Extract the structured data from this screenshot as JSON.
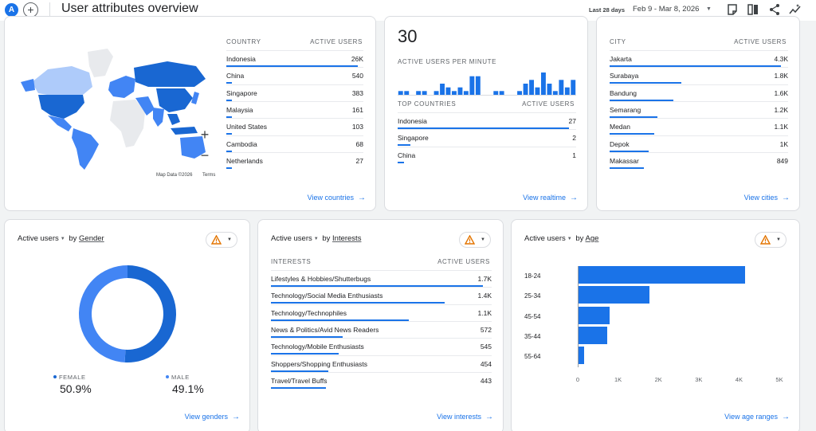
{
  "header": {
    "avatar_letter": "A",
    "plus": "+",
    "title": "User attributes overview",
    "date_chip": "Last 28 days",
    "date_range": "Feb 9 - Mar 8, 2026",
    "caret": "▼",
    "icons": [
      "annotation-icon",
      "compare-icon",
      "share-icon",
      "insights-icon"
    ]
  },
  "country_card": {
    "col_country": "COUNTRY",
    "col_users": "ACTIVE USERS",
    "rows": [
      {
        "label": "Indonesia",
        "value": "26K",
        "share": 1.0
      },
      {
        "label": "China",
        "value": "540",
        "share": 0.021
      },
      {
        "label": "Singapore",
        "value": "383",
        "share": 0.015
      },
      {
        "label": "Malaysia",
        "value": "161",
        "share": 0.006
      },
      {
        "label": "United States",
        "value": "103",
        "share": 0.004
      },
      {
        "label": "Cambodia",
        "value": "68",
        "share": 0.003
      },
      {
        "label": "Netherlands",
        "value": "27",
        "share": 0.001
      }
    ],
    "zoom_in": "+",
    "zoom_out": "−",
    "map_attribution": "Map Data ©2026",
    "map_terms": "Terms",
    "view_link": "View countries",
    "arrow": "→"
  },
  "realtime_card": {
    "big_number": "30",
    "per_minute_label": "ACTIVE USERS PER MINUTE",
    "per_minute_values": [
      1,
      1,
      0,
      1,
      1,
      0,
      1,
      3,
      2,
      1,
      2,
      1,
      5,
      5,
      0,
      0,
      1,
      1,
      0,
      0,
      1,
      3,
      4,
      2,
      6,
      3,
      1,
      4,
      2,
      4
    ],
    "col_country": "TOP COUNTRIES",
    "col_users": "ACTIVE USERS",
    "rows": [
      {
        "label": "Indonesia",
        "value": "27",
        "share": 1.0
      },
      {
        "label": "Singapore",
        "value": "2",
        "share": 0.074
      },
      {
        "label": "China",
        "value": "1",
        "share": 0.037
      }
    ],
    "view_link": "View realtime",
    "arrow": "→"
  },
  "city_card": {
    "col_city": "CITY",
    "col_users": "ACTIVE USERS",
    "rows": [
      {
        "label": "Jakarta",
        "value": "4.3K",
        "share": 1.0
      },
      {
        "label": "Surabaya",
        "value": "1.8K",
        "share": 0.42
      },
      {
        "label": "Bandung",
        "value": "1.6K",
        "share": 0.37
      },
      {
        "label": "Semarang",
        "value": "1.2K",
        "share": 0.28
      },
      {
        "label": "Medan",
        "value": "1.1K",
        "share": 0.26
      },
      {
        "label": "Depok",
        "value": "1K",
        "share": 0.23
      },
      {
        "label": "Makassar",
        "value": "849",
        "share": 0.2
      }
    ],
    "view_link": "View cities",
    "arrow": "→"
  },
  "gender_card": {
    "metric": "Active users",
    "caret": "▼",
    "by": " by ",
    "dimension": "Gender",
    "chip_caret": "▼",
    "segments": [
      {
        "label": "FEMALE",
        "value": "50.9%",
        "share": 0.509,
        "color": "#1967d2"
      },
      {
        "label": "MALE",
        "value": "49.1%",
        "share": 0.491,
        "color": "#4285f4"
      }
    ],
    "view_link": "View genders",
    "arrow": "→"
  },
  "interests_card": {
    "metric": "Active users",
    "caret": "▼",
    "by": " by ",
    "dimension": "Interests",
    "chip_caret": "▼",
    "col_interest": "INTERESTS",
    "col_users": "ACTIVE USERS",
    "rows": [
      {
        "label": "Lifestyles & Hobbies/Shutterbugs",
        "value": "1.7K",
        "share": 1.0
      },
      {
        "label": "Technology/Social Media Enthusiasts",
        "value": "1.4K",
        "share": 0.82
      },
      {
        "label": "Technology/Technophiles",
        "value": "1.1K",
        "share": 0.65
      },
      {
        "label": "News & Politics/Avid News Readers",
        "value": "572",
        "share": 0.34
      },
      {
        "label": "Technology/Mobile Enthusiasts",
        "value": "545",
        "share": 0.32
      },
      {
        "label": "Shoppers/Shopping Enthusiasts",
        "value": "454",
        "share": 0.27
      },
      {
        "label": "Travel/Travel Buffs",
        "value": "443",
        "share": 0.26
      }
    ],
    "view_link": "View interests",
    "arrow": "→"
  },
  "age_card": {
    "metric": "Active users",
    "caret": "▼",
    "by": " by ",
    "dimension": "Age",
    "chip_caret": "▼",
    "view_link": "View age ranges",
    "arrow": "→"
  },
  "chart_data": [
    {
      "type": "bar",
      "orientation": "horizontal",
      "categories": [
        "18-24",
        "25-34",
        "45-54",
        "35-44",
        "55-64"
      ],
      "values": [
        4150,
        1780,
        800,
        730,
        150
      ],
      "xlim": [
        0,
        5000
      ],
      "xticks": [
        "0",
        "1K",
        "2K",
        "3K",
        "4K",
        "5K"
      ],
      "bar_color": "#1a73e8"
    },
    {
      "type": "pie",
      "donut": true,
      "categories": [
        "FEMALE",
        "MALE"
      ],
      "values": [
        50.9,
        49.1
      ]
    }
  ],
  "colors": {
    "accent": "#1a73e8",
    "map_dark": "#1967d2",
    "map_mid": "#4285f4",
    "map_light": "#aecbfa",
    "map_none": "#e8eaed",
    "warning": "#e37400"
  }
}
